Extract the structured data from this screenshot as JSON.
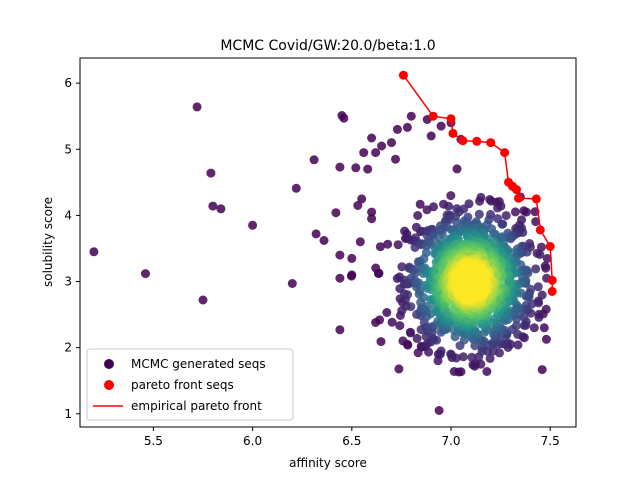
{
  "chart_data": {
    "type": "scatter",
    "title": "MCMC Covid/GW:20.0/beta:1.0",
    "xlabel": "affinity score",
    "ylabel": "solubility score",
    "xlim": [
      5.13,
      7.63
    ],
    "ylim": [
      0.8,
      6.38
    ],
    "xticks": [
      5.5,
      6.0,
      6.5,
      7.0,
      7.5
    ],
    "xtick_labels": [
      "5.5",
      "6.0",
      "6.5",
      "7.0",
      "7.5"
    ],
    "yticks": [
      1,
      2,
      3,
      4,
      5,
      6
    ],
    "ytick_labels": [
      "1",
      "2",
      "3",
      "4",
      "5",
      "6"
    ],
    "grid": false,
    "legend_position": "lower-left",
    "colors": {
      "mcmc": "#440154",
      "pareto": "#ff0000",
      "viridis": [
        "#440154",
        "#3b528b",
        "#21918c",
        "#5ec962",
        "#fde725"
      ]
    },
    "series": [
      {
        "name": "MCMC generated seqs",
        "kind": "scatter",
        "cluster": {
          "center": [
            7.1,
            3.0
          ],
          "spread": [
            0.16,
            0.52
          ],
          "count": 1100
        },
        "points": [
          [
            5.2,
            3.45
          ],
          [
            5.46,
            3.12
          ],
          [
            5.72,
            5.64
          ],
          [
            5.75,
            2.72
          ],
          [
            5.79,
            4.64
          ],
          [
            5.8,
            4.14
          ],
          [
            5.84,
            4.1
          ],
          [
            6.0,
            3.85
          ],
          [
            6.2,
            2.97
          ],
          [
            6.22,
            4.41
          ],
          [
            6.31,
            4.84
          ],
          [
            6.32,
            3.72
          ],
          [
            6.36,
            3.62
          ],
          [
            6.42,
            4.04
          ],
          [
            6.44,
            4.73
          ],
          [
            6.45,
            5.51
          ],
          [
            6.46,
            5.47
          ],
          [
            6.44,
            3.4
          ],
          [
            6.44,
            3.05
          ],
          [
            6.44,
            2.27
          ],
          [
            6.5,
            3.1
          ],
          [
            6.5,
            3.35
          ],
          [
            6.52,
            4.72
          ],
          [
            6.55,
            4.25
          ],
          [
            6.58,
            4.7
          ],
          [
            6.6,
            4.05
          ],
          [
            6.6,
            3.95
          ],
          [
            6.62,
            2.38
          ],
          [
            6.64,
            2.42
          ],
          [
            6.94,
            1.05
          ],
          [
            7.12,
            1.72
          ],
          [
            7.15,
            1.75
          ],
          [
            7.14,
            1.86
          ],
          [
            6.78,
            2.05
          ],
          [
            6.85,
            2.02
          ],
          [
            6.95,
            1.95
          ],
          [
            7.3,
            2.05
          ],
          [
            7.37,
            2.15
          ],
          [
            7.47,
            2.3
          ],
          [
            7.42,
            2.3
          ],
          [
            7.48,
            2.58
          ],
          [
            7.44,
            2.92
          ],
          [
            7.4,
            3.52
          ],
          [
            7.38,
            4.05
          ],
          [
            7.35,
            4.28
          ],
          [
            6.8,
            5.5
          ],
          [
            6.88,
            5.45
          ],
          [
            6.73,
            5.3
          ],
          [
            6.78,
            5.33
          ],
          [
            6.7,
            5.1
          ],
          [
            6.65,
            5.05
          ],
          [
            6.95,
            5.35
          ],
          [
            7.0,
            5.4
          ],
          [
            7.05,
            5.15
          ],
          [
            6.9,
            5.2
          ],
          [
            6.6,
            5.17
          ],
          [
            6.62,
            4.95
          ],
          [
            6.72,
            4.85
          ],
          [
            6.56,
            4.95
          ],
          [
            6.53,
            4.15
          ]
        ]
      },
      {
        "name": "pareto front seqs",
        "kind": "scatter",
        "points": [
          [
            6.76,
            6.12
          ],
          [
            6.91,
            5.5
          ],
          [
            7.0,
            5.46
          ],
          [
            7.01,
            5.24
          ],
          [
            7.06,
            5.13
          ],
          [
            7.13,
            5.12
          ],
          [
            7.2,
            5.1
          ],
          [
            7.27,
            4.95
          ],
          [
            7.29,
            4.5
          ],
          [
            7.31,
            4.44
          ],
          [
            7.33,
            4.39
          ],
          [
            7.34,
            4.26
          ],
          [
            7.43,
            4.25
          ],
          [
            7.45,
            3.78
          ],
          [
            7.5,
            3.53
          ],
          [
            7.51,
            3.02
          ],
          [
            7.51,
            2.85
          ]
        ]
      },
      {
        "name": "empirical pareto front",
        "kind": "line",
        "points": [
          [
            6.76,
            6.12
          ],
          [
            6.91,
            5.5
          ],
          [
            7.0,
            5.46
          ],
          [
            7.01,
            5.24
          ],
          [
            7.06,
            5.13
          ],
          [
            7.13,
            5.12
          ],
          [
            7.2,
            5.1
          ],
          [
            7.27,
            4.95
          ],
          [
            7.29,
            4.5
          ],
          [
            7.31,
            4.44
          ],
          [
            7.33,
            4.39
          ],
          [
            7.34,
            4.26
          ],
          [
            7.43,
            4.25
          ],
          [
            7.45,
            3.78
          ],
          [
            7.5,
            3.53
          ],
          [
            7.51,
            3.02
          ],
          [
            7.51,
            2.85
          ]
        ]
      }
    ],
    "legend": [
      {
        "label": "MCMC generated seqs",
        "marker": "circle",
        "color": "#440154"
      },
      {
        "label": "pareto front seqs",
        "marker": "circle",
        "color": "#ff0000"
      },
      {
        "label": "empirical pareto front",
        "marker": "line",
        "color": "#ff0000"
      }
    ]
  }
}
